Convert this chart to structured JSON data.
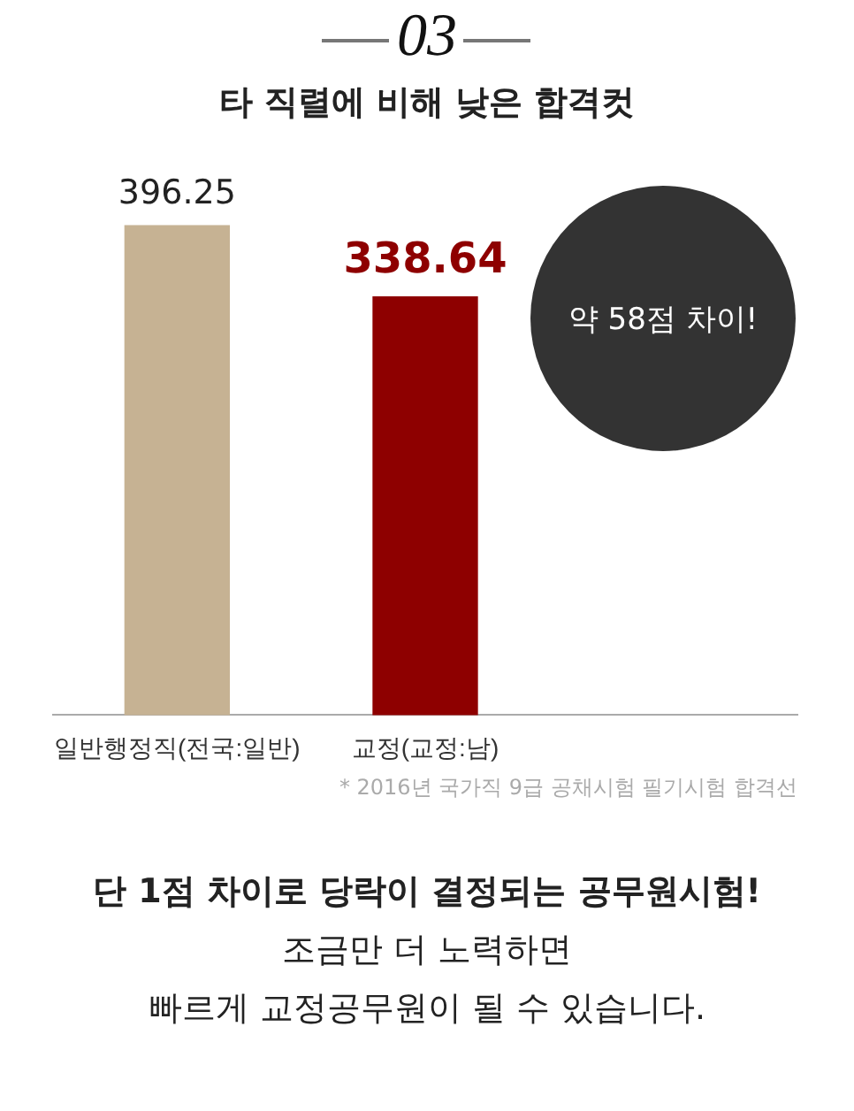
{
  "chart_data": {
    "type": "bar",
    "title": "타 직렬에 비해 낮은 합격컷",
    "categories": [
      "일반행정직(전국:일반)",
      "교정(교정:남)"
    ],
    "values": [
      396.25,
      338.64
    ],
    "colors": [
      "#c6b293",
      "#8e0000"
    ],
    "data_labels": true,
    "annotations": [
      "03",
      "약 58점 차이!",
      "* 2016년 국가직 9급 공채시험 필기시험 합격선",
      "단 1점 차이로 당락이 결정되는 공무원시험!",
      "조금만 더 노력하면",
      "빠르게 교정공무원이 될 수 있습니다."
    ]
  }
}
